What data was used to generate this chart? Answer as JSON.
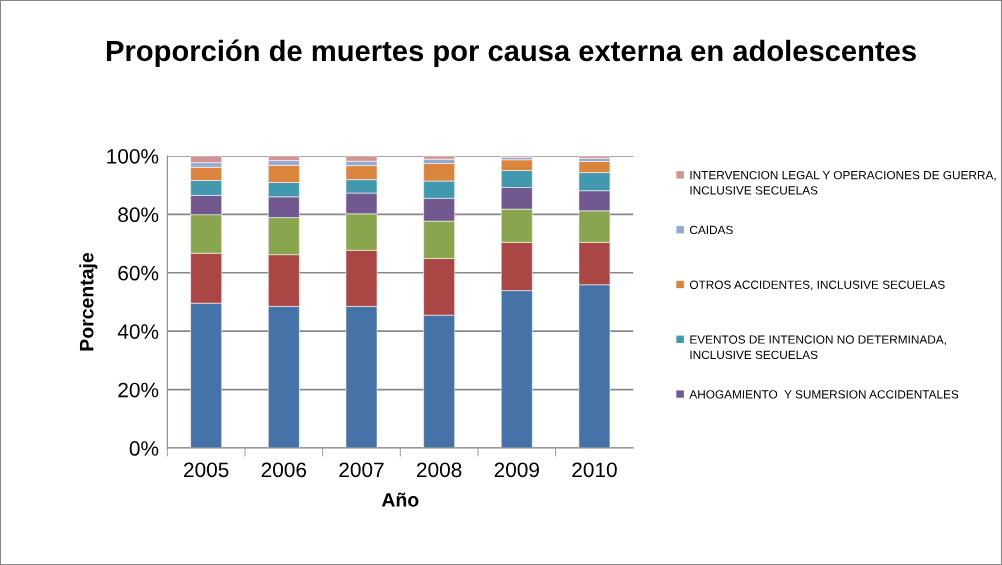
{
  "chart_data": {
    "type": "bar",
    "stacked": true,
    "title": "Proporción de muertes por causa externa en adolescentes",
    "xlabel": "Año",
    "ylabel": "Porcentaje",
    "categories": [
      "2005",
      "2006",
      "2007",
      "2008",
      "2009",
      "2010"
    ],
    "series": [
      {
        "color": "#4572a7",
        "values": [
          49.6,
          48.5,
          48.5,
          45.5,
          53.9,
          55.9
        ]
      },
      {
        "color": "#aa4643",
        "values": [
          17.1,
          17.7,
          19.2,
          19.4,
          16.5,
          14.5
        ]
      },
      {
        "color": "#89a54e",
        "values": [
          13.2,
          12.7,
          12.5,
          12.8,
          11.4,
          10.8
        ]
      },
      {
        "name": "AHOGAMIENTO  Y SUMERSION ACCIDENTALES",
        "color": "#71588f",
        "values": [
          6.6,
          7.1,
          7.1,
          7.8,
          7.4,
          6.9
        ]
      },
      {
        "name": "EVENTOS DE INTENCION NO DETERMINADA, INCLUSIVE SECUELAS",
        "color": "#4198af",
        "values": [
          5.1,
          4.9,
          4.6,
          5.9,
          5.8,
          6.2
        ]
      },
      {
        "name": "OTROS ACCIDENTES, INCLUSIVE SECUELAS",
        "color": "#db843d",
        "values": [
          4.5,
          5.9,
          4.8,
          6.0,
          3.7,
          3.8
        ]
      },
      {
        "name": "CAIDAS",
        "color": "#93a9cf",
        "values": [
          1.6,
          1.6,
          1.5,
          1.5,
          0.8,
          1.1
        ]
      },
      {
        "name": "INTERVENCION LEGAL Y OPERACIONES DE GUERRA, INCLUSIVE SECUELAS",
        "color": "#d19392",
        "values": [
          2.3,
          1.6,
          1.8,
          1.1,
          0.5,
          0.8
        ]
      }
    ],
    "ylim": [
      0,
      100
    ],
    "yticks": [
      {
        "value": 0,
        "label": "0%"
      },
      {
        "value": 20,
        "label": "20%"
      },
      {
        "value": 40,
        "label": "40%"
      },
      {
        "value": 60,
        "label": "60%"
      },
      {
        "value": 80,
        "label": "80%"
      },
      {
        "value": 100,
        "label": "100%"
      }
    ],
    "grid": "y",
    "legend": "right"
  }
}
